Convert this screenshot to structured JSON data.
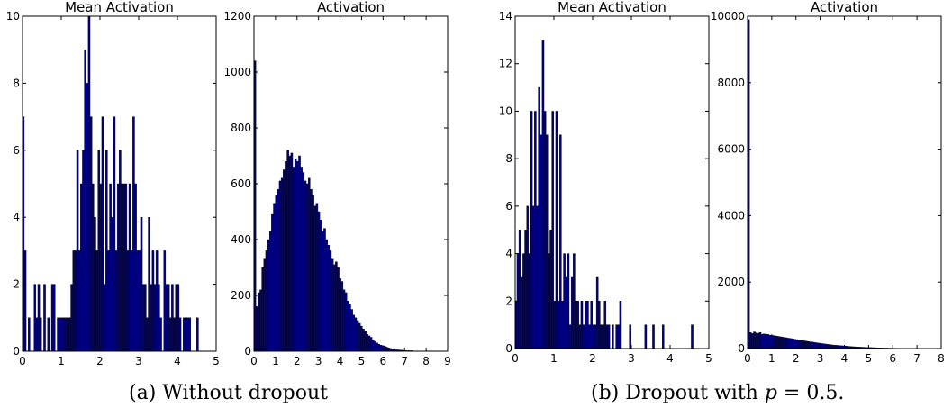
{
  "chart_data": [
    {
      "type": "bar",
      "title": "Mean Activation",
      "xlim": [
        0,
        5
      ],
      "ylim": [
        0,
        10
      ],
      "xticks": [
        "0",
        "1",
        "2",
        "3",
        "4",
        "5"
      ],
      "yticks": [
        "0",
        "2",
        "4",
        "6",
        "8",
        "10"
      ],
      "bin_width": 0.05,
      "x": [
        0.02,
        0.07,
        0.17,
        0.32,
        0.37,
        0.42,
        0.47,
        0.57,
        0.67,
        0.77,
        0.82,
        0.92,
        0.97,
        1.02,
        1.07,
        1.12,
        1.17,
        1.22,
        1.27,
        1.32,
        1.37,
        1.42,
        1.47,
        1.52,
        1.57,
        1.62,
        1.67,
        1.72,
        1.77,
        1.82,
        1.87,
        1.92,
        1.97,
        2.02,
        2.07,
        2.12,
        2.17,
        2.22,
        2.27,
        2.32,
        2.37,
        2.42,
        2.47,
        2.52,
        2.57,
        2.62,
        2.67,
        2.72,
        2.77,
        2.82,
        2.87,
        2.92,
        2.97,
        3.02,
        3.07,
        3.12,
        3.17,
        3.22,
        3.27,
        3.32,
        3.37,
        3.42,
        3.47,
        3.52,
        3.57,
        3.67,
        3.72,
        3.77,
        3.82,
        3.87,
        3.92,
        3.97,
        4.02,
        4.07,
        4.17,
        4.22,
        4.27,
        4.32,
        4.52
      ],
      "values": [
        7,
        3,
        1,
        2,
        1,
        2,
        1,
        2,
        1,
        2,
        2,
        1,
        1,
        1,
        1,
        1,
        1,
        1,
        2,
        3,
        3,
        6,
        3,
        5,
        6,
        9,
        8,
        10,
        7,
        5,
        4,
        3,
        6,
        5,
        7,
        2,
        6,
        3,
        5,
        4,
        7,
        3,
        5,
        6,
        5,
        5,
        5,
        3,
        5,
        3,
        7,
        5,
        3,
        3,
        4,
        2,
        2,
        1,
        4,
        2,
        3,
        2,
        3,
        2,
        1,
        3,
        2,
        2,
        1,
        2,
        1,
        2,
        2,
        1,
        1,
        1,
        1,
        1,
        1
      ]
    },
    {
      "type": "bar",
      "title": "Activation",
      "xlim": [
        0,
        9
      ],
      "ylim": [
        0,
        1200
      ],
      "xticks": [
        "0",
        "1",
        "2",
        "3",
        "4",
        "5",
        "6",
        "7",
        "8",
        "9"
      ],
      "yticks": [
        "0",
        "200",
        "400",
        "600",
        "800",
        "1000",
        "1200"
      ],
      "bin_width": 0.09,
      "x": [
        0.045,
        0.135,
        0.225,
        0.315,
        0.405,
        0.495,
        0.585,
        0.675,
        0.765,
        0.855,
        0.945,
        1.035,
        1.125,
        1.215,
        1.305,
        1.395,
        1.485,
        1.575,
        1.665,
        1.755,
        1.845,
        1.935,
        2.025,
        2.115,
        2.205,
        2.295,
        2.385,
        2.475,
        2.565,
        2.655,
        2.745,
        2.835,
        2.925,
        3.015,
        3.105,
        3.195,
        3.285,
        3.375,
        3.465,
        3.555,
        3.645,
        3.735,
        3.825,
        3.915,
        4.005,
        4.095,
        4.185,
        4.275,
        4.365,
        4.455,
        4.545,
        4.635,
        4.725,
        4.815,
        4.905,
        4.995,
        5.085,
        5.175,
        5.265,
        5.355,
        5.445,
        5.535,
        5.625,
        5.715,
        5.805,
        5.895,
        5.985,
        6.075,
        6.165,
        6.255,
        6.345,
        6.435,
        6.525,
        6.615,
        6.705,
        6.795,
        6.885,
        6.975,
        7.065,
        7.155,
        7.245,
        7.335,
        7.425,
        7.515,
        7.605,
        7.695,
        7.785,
        7.875,
        7.965,
        8.055,
        8.145,
        8.235,
        8.325,
        8.415,
        8.505,
        8.595
      ],
      "values": [
        1040,
        160,
        210,
        220,
        300,
        330,
        360,
        400,
        430,
        490,
        530,
        560,
        580,
        610,
        620,
        650,
        680,
        720,
        700,
        710,
        660,
        690,
        680,
        700,
        660,
        640,
        610,
        600,
        620,
        580,
        560,
        520,
        530,
        500,
        470,
        430,
        440,
        400,
        380,
        360,
        330,
        310,
        320,
        300,
        260,
        250,
        220,
        210,
        180,
        170,
        150,
        130,
        120,
        110,
        100,
        90,
        80,
        70,
        60,
        55,
        50,
        40,
        35,
        30,
        25,
        22,
        20,
        18,
        15,
        12,
        10,
        8,
        6,
        5,
        5,
        4,
        4,
        3,
        2,
        2,
        2,
        2,
        1,
        1,
        1,
        1,
        1,
        1,
        1,
        1,
        1,
        1,
        1,
        1,
        1,
        1
      ]
    },
    {
      "type": "bar",
      "title": "Mean Activation",
      "xlim": [
        0,
        5
      ],
      "ylim": [
        0,
        14
      ],
      "xticks": [
        "0",
        "1",
        "2",
        "3",
        "4",
        "5"
      ],
      "yticks": [
        "0",
        "2",
        "4",
        "6",
        "8",
        "10",
        "12",
        "14"
      ],
      "bin_width": 0.05,
      "x": [
        0.02,
        0.07,
        0.12,
        0.17,
        0.22,
        0.27,
        0.32,
        0.37,
        0.42,
        0.47,
        0.52,
        0.57,
        0.62,
        0.67,
        0.72,
        0.77,
        0.82,
        0.87,
        0.92,
        0.97,
        1.02,
        1.07,
        1.12,
        1.17,
        1.22,
        1.27,
        1.32,
        1.37,
        1.42,
        1.47,
        1.52,
        1.57,
        1.62,
        1.67,
        1.72,
        1.77,
        1.82,
        1.87,
        1.92,
        1.97,
        2.02,
        2.07,
        2.12,
        2.17,
        2.22,
        2.27,
        2.32,
        2.37,
        2.42,
        2.52,
        2.62,
        2.67,
        2.72,
        2.97,
        3.37,
        3.57,
        3.82,
        4.57
      ],
      "values": [
        2,
        4,
        5,
        3,
        4,
        5,
        6,
        4,
        10,
        6,
        10,
        6,
        11,
        9,
        13,
        10,
        9,
        4,
        5,
        10,
        2,
        10,
        2,
        9,
        2,
        4,
        3,
        4,
        1,
        3,
        4,
        2,
        2,
        1,
        2,
        1,
        2,
        2,
        1,
        2,
        1,
        1,
        3,
        2,
        1,
        1,
        2,
        1,
        1,
        1,
        1,
        1,
        2,
        1,
        1,
        1,
        1,
        1
      ]
    },
    {
      "type": "bar",
      "title": "Activation",
      "xlim": [
        0,
        8
      ],
      "ylim": [
        0,
        10000
      ],
      "xticks": [
        "0",
        "1",
        "2",
        "3",
        "4",
        "5",
        "6",
        "7",
        "8"
      ],
      "yticks": [
        "0",
        "2000",
        "4000",
        "6000",
        "8000",
        "10000"
      ],
      "bin_width": 0.08,
      "x": [
        0.04,
        0.12,
        0.2,
        0.28,
        0.36,
        0.44,
        0.52,
        0.6,
        0.68,
        0.76,
        0.84,
        0.92,
        1.0,
        1.08,
        1.16,
        1.24,
        1.32,
        1.4,
        1.48,
        1.56,
        1.64,
        1.72,
        1.8,
        1.88,
        1.96,
        2.04,
        2.12,
        2.2,
        2.28,
        2.36,
        2.44,
        2.52,
        2.6,
        2.68,
        2.76,
        2.84,
        2.92,
        3.0,
        3.08,
        3.16,
        3.24,
        3.32,
        3.4,
        3.48,
        3.56,
        3.64,
        3.72,
        3.8,
        3.88,
        3.96,
        4.04,
        4.12,
        4.2,
        4.28,
        4.36,
        4.44,
        4.52,
        4.6,
        4.68,
        4.76,
        4.84,
        4.92,
        5.0,
        5.08,
        5.16,
        5.24,
        5.32,
        5.4,
        5.48,
        5.56,
        5.64,
        5.72,
        5.8,
        5.88,
        5.96,
        6.04,
        6.12,
        6.2,
        6.28,
        6.36,
        6.44,
        6.52,
        6.6,
        6.68,
        6.76,
        6.84,
        6.92,
        7.0,
        7.08,
        7.16,
        7.24
      ],
      "values": [
        9900,
        480,
        450,
        500,
        470,
        460,
        480,
        430,
        440,
        420,
        430,
        400,
        410,
        390,
        380,
        370,
        360,
        350,
        340,
        330,
        320,
        310,
        300,
        290,
        280,
        270,
        260,
        250,
        240,
        230,
        220,
        210,
        200,
        195,
        185,
        175,
        165,
        160,
        150,
        140,
        135,
        125,
        120,
        110,
        105,
        100,
        95,
        90,
        85,
        80,
        75,
        70,
        65,
        60,
        55,
        52,
        48,
        45,
        42,
        40,
        37,
        35,
        32,
        30,
        28,
        26,
        24,
        22,
        20,
        18,
        16,
        15,
        14,
        12,
        11,
        10,
        9,
        8,
        7,
        6,
        5,
        5,
        4,
        4,
        3,
        3,
        2,
        2,
        2,
        2,
        1
      ]
    }
  ],
  "captions": {
    "a": "(a) Without dropout",
    "b_prefix": "(b) Dropout with ",
    "b_var": "p",
    "b_suffix": " = 0.5."
  }
}
